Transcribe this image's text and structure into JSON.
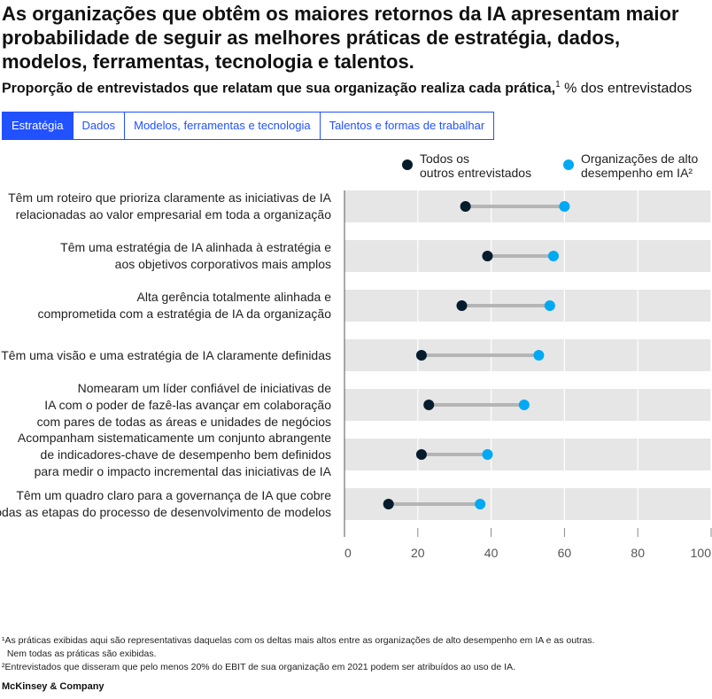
{
  "title": "As organizações que obtêm os maiores retornos da IA apresentam maior probabilidade de seguir as melhores práticas de estratégia, dados, modelos, ferramentas, tecnologia e talentos.",
  "subtitle": {
    "bold": "Proporção de entrevistados que relatam que sua organização realiza cada prática,",
    "sup": "1",
    "unit": " % dos entrevistados"
  },
  "tabs": [
    {
      "label": "Estratégia",
      "active": true
    },
    {
      "label": "Dados",
      "active": false
    },
    {
      "label": "Modelos, ferramentas e tecnologia",
      "active": false
    },
    {
      "label": "Talentos e formas de trabalhar",
      "active": false
    }
  ],
  "legend": {
    "others_line1": "Todos os",
    "others_line2": "outros entrevistados",
    "high_line1": "Organizações de alto",
    "high_line2": "desempenho em IA²"
  },
  "colors": {
    "others": "#051c2c",
    "high": "#00a9f4",
    "connector": "#b5b5b5",
    "band": "#e6e6e6",
    "tab": "#2251ff"
  },
  "chart_data": {
    "type": "dumbbell",
    "xlim": [
      0,
      100
    ],
    "xticks": [
      "0",
      "20",
      "40",
      "60",
      "80",
      "100"
    ],
    "series": [
      {
        "name": "Todos os outros entrevistados",
        "values": [
          33,
          39,
          32,
          21,
          23,
          21,
          12
        ]
      },
      {
        "name": "Organizações de alto desempenho em IA²",
        "values": [
          60,
          57,
          56,
          53,
          49,
          39,
          37
        ]
      }
    ],
    "categories": [
      [
        "Têm um roteiro que prioriza claramente as iniciativas de IA",
        "relacionadas ao valor empresarial em toda a organização"
      ],
      [
        "Têm uma estratégia de IA alinhada à estratégia e",
        "aos objetivos corporativos mais amplos"
      ],
      [
        "Alta gerência totalmente alinhada e",
        "comprometida com a estratégia de IA da organização"
      ],
      [
        "Têm uma visão e uma estratégia de IA claramente definidas"
      ],
      [
        "Nomearam um líder confiável de iniciativas de",
        "IA com o poder de fazê-las avançar em colaboração",
        "com pares de todas as áreas e unidades de negócios"
      ],
      [
        "Acompanham sistematicamente um conjunto abrangente",
        "de indicadores-chave de desempenho bem definidos",
        "para medir o impacto incremental das iniciativas de IA"
      ],
      [
        "Têm um quadro claro para a governança de IA que cobre",
        "todas as etapas do processo de desenvolvimento de modelos"
      ]
    ]
  },
  "footnotes": [
    "¹As práticas exibidas aqui são representativas daquelas com os deltas mais altos entre as organizações de alto desempenho em IA e as outras.",
    "  Nem todas as práticas são exibidas.",
    "²Entrevistados que disseram que pelo menos 20% do EBIT de sua organização em 2021 podem ser atribuídos ao uso de IA."
  ],
  "logo": "McKinsey & Company"
}
